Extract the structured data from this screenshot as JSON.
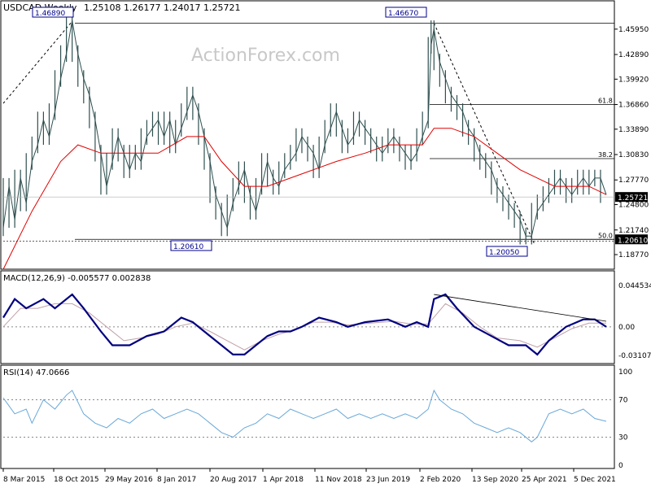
{
  "header": {
    "symbol": "USDCAD,Weekly",
    "ohlc": "1.25108 1.26177 1.24017 1.25721",
    "watermark": "ActionForex.com"
  },
  "colors": {
    "price": "#2f4f4f",
    "ma": "#e00000",
    "macd": "#000080",
    "signal": "#c0a0a8",
    "rsi": "#6aa8d8",
    "line": "#000000"
  },
  "chart_data": [
    {
      "type": "line",
      "title": "USDCAD,Weekly",
      "y_ticks": [
        "1.45950",
        "1.42890",
        "1.39920",
        "1.36860",
        "1.33890",
        "1.30830",
        "1.27770",
        "1.24800",
        "1.21740",
        "1.18770"
      ],
      "ylim": [
        1.175,
        1.475
      ],
      "x_ticks": [
        "8 Mar 2015",
        "18 Oct 2015",
        "29 May 2016",
        "8 Jan 2017",
        "20 Aug 2017",
        "1 Apr 2018",
        "11 Nov 2018",
        "23 Jun 2019",
        "2 Feb 2020",
        "13 Sep 2020",
        "25 Apr 2021",
        "5 Dec 2021"
      ],
      "current_price": "1.25721",
      "price_series": [
        [
          0,
          1.22
        ],
        [
          2,
          1.27
        ],
        [
          4,
          1.23
        ],
        [
          6,
          1.28
        ],
        [
          8,
          1.25
        ],
        [
          10,
          1.3
        ],
        [
          12,
          1.32
        ],
        [
          14,
          1.35
        ],
        [
          16,
          1.33
        ],
        [
          18,
          1.36
        ],
        [
          20,
          1.4
        ],
        [
          22,
          1.43
        ],
        [
          24,
          1.47
        ],
        [
          26,
          1.43
        ],
        [
          28,
          1.4
        ],
        [
          30,
          1.38
        ],
        [
          32,
          1.35
        ],
        [
          34,
          1.31
        ],
        [
          36,
          1.27
        ],
        [
          38,
          1.3
        ],
        [
          40,
          1.33
        ],
        [
          42,
          1.31
        ],
        [
          44,
          1.29
        ],
        [
          46,
          1.31
        ],
        [
          48,
          1.3
        ],
        [
          50,
          1.33
        ],
        [
          52,
          1.34
        ],
        [
          54,
          1.35
        ],
        [
          56,
          1.33
        ],
        [
          58,
          1.35
        ],
        [
          60,
          1.32
        ],
        [
          62,
          1.34
        ],
        [
          64,
          1.36
        ],
        [
          66,
          1.38
        ],
        [
          68,
          1.36
        ],
        [
          70,
          1.33
        ],
        [
          72,
          1.3
        ],
        [
          74,
          1.26
        ],
        [
          76,
          1.24
        ],
        [
          78,
          1.22
        ],
        [
          80,
          1.25
        ],
        [
          82,
          1.27
        ],
        [
          84,
          1.29
        ],
        [
          86,
          1.26
        ],
        [
          88,
          1.24
        ],
        [
          90,
          1.27
        ],
        [
          92,
          1.3
        ],
        [
          94,
          1.28
        ],
        [
          96,
          1.27
        ],
        [
          98,
          1.29
        ],
        [
          100,
          1.3
        ],
        [
          102,
          1.31
        ],
        [
          104,
          1.33
        ],
        [
          106,
          1.32
        ],
        [
          108,
          1.31
        ],
        [
          110,
          1.29
        ],
        [
          112,
          1.32
        ],
        [
          114,
          1.34
        ],
        [
          116,
          1.36
        ],
        [
          118,
          1.34
        ],
        [
          120,
          1.32
        ],
        [
          122,
          1.33
        ],
        [
          124,
          1.35
        ],
        [
          126,
          1.34
        ],
        [
          128,
          1.33
        ],
        [
          130,
          1.32
        ],
        [
          132,
          1.31
        ],
        [
          134,
          1.32
        ],
        [
          136,
          1.33
        ],
        [
          138,
          1.32
        ],
        [
          140,
          1.31
        ],
        [
          142,
          1.3
        ],
        [
          144,
          1.31
        ],
        [
          146,
          1.33
        ],
        [
          148,
          1.35
        ],
        [
          149,
          1.44
        ],
        [
          150,
          1.46
        ],
        [
          152,
          1.42
        ],
        [
          154,
          1.4
        ],
        [
          156,
          1.38
        ],
        [
          158,
          1.37
        ],
        [
          160,
          1.36
        ],
        [
          162,
          1.34
        ],
        [
          164,
          1.33
        ],
        [
          166,
          1.31
        ],
        [
          168,
          1.3
        ],
        [
          170,
          1.29
        ],
        [
          172,
          1.27
        ],
        [
          174,
          1.26
        ],
        [
          176,
          1.25
        ],
        [
          178,
          1.24
        ],
        [
          180,
          1.23
        ],
        [
          182,
          1.21
        ],
        [
          184,
          1.21
        ],
        [
          186,
          1.24
        ],
        [
          188,
          1.25
        ],
        [
          190,
          1.26
        ],
        [
          192,
          1.27
        ],
        [
          194,
          1.28
        ],
        [
          196,
          1.27
        ],
        [
          198,
          1.26
        ],
        [
          200,
          1.27
        ],
        [
          202,
          1.28
        ],
        [
          204,
          1.27
        ],
        [
          206,
          1.28
        ],
        [
          208,
          1.28
        ],
        [
          210,
          1.26
        ]
      ],
      "ma_series": [
        [
          0,
          1.17
        ],
        [
          10,
          1.24
        ],
        [
          20,
          1.3
        ],
        [
          26,
          1.32
        ],
        [
          34,
          1.31
        ],
        [
          44,
          1.31
        ],
        [
          54,
          1.31
        ],
        [
          64,
          1.33
        ],
        [
          70,
          1.33
        ],
        [
          76,
          1.3
        ],
        [
          84,
          1.27
        ],
        [
          92,
          1.27
        ],
        [
          100,
          1.28
        ],
        [
          108,
          1.29
        ],
        [
          116,
          1.3
        ],
        [
          126,
          1.31
        ],
        [
          134,
          1.32
        ],
        [
          140,
          1.32
        ],
        [
          146,
          1.32
        ],
        [
          150,
          1.34
        ],
        [
          156,
          1.34
        ],
        [
          164,
          1.33
        ],
        [
          172,
          1.31
        ],
        [
          180,
          1.29
        ],
        [
          186,
          1.28
        ],
        [
          192,
          1.27
        ],
        [
          198,
          1.27
        ],
        [
          204,
          1.27
        ],
        [
          210,
          1.26
        ]
      ],
      "levels": [
        {
          "label": "61.8",
          "value": 1.3686
        },
        {
          "label": "38.2",
          "value": 1.3034
        },
        {
          "label": "50.0",
          "value": 1.2061
        }
      ],
      "boxes": [
        {
          "label": "1.46890",
          "value": 1.4689
        },
        {
          "label": "1.46670",
          "value": 1.4667
        },
        {
          "label": "1.20610",
          "value": 1.2061
        },
        {
          "label": "1.20050",
          "value": 1.2005
        }
      ]
    },
    {
      "type": "line",
      "title": "MACD(12,26,9) -0.005577 0.002838",
      "y_ticks": [
        "0.044534",
        "0.00",
        "-0.031072"
      ],
      "ylim": [
        -0.038,
        0.05
      ],
      "macd_series": [
        [
          0,
          0.01
        ],
        [
          4,
          0.03
        ],
        [
          8,
          0.02
        ],
        [
          14,
          0.03
        ],
        [
          18,
          0.02
        ],
        [
          24,
          0.035
        ],
        [
          28,
          0.02
        ],
        [
          34,
          -0.005
        ],
        [
          38,
          -0.02
        ],
        [
          44,
          -0.02
        ],
        [
          50,
          -0.01
        ],
        [
          56,
          -0.005
        ],
        [
          62,
          0.01
        ],
        [
          66,
          0.005
        ],
        [
          70,
          -0.005
        ],
        [
          76,
          -0.02
        ],
        [
          80,
          -0.03
        ],
        [
          84,
          -0.03
        ],
        [
          88,
          -0.02
        ],
        [
          92,
          -0.01
        ],
        [
          96,
          -0.005
        ],
        [
          100,
          -0.005
        ],
        [
          104,
          0.0
        ],
        [
          110,
          0.01
        ],
        [
          116,
          0.005
        ],
        [
          120,
          0.0
        ],
        [
          126,
          0.005
        ],
        [
          134,
          0.008
        ],
        [
          140,
          0.0
        ],
        [
          144,
          0.005
        ],
        [
          148,
          0.0
        ],
        [
          150,
          0.03
        ],
        [
          154,
          0.035
        ],
        [
          158,
          0.02
        ],
        [
          164,
          0.0
        ],
        [
          170,
          -0.01
        ],
        [
          176,
          -0.02
        ],
        [
          182,
          -0.02
        ],
        [
          186,
          -0.03
        ],
        [
          190,
          -0.015
        ],
        [
          196,
          0.0
        ],
        [
          202,
          0.008
        ],
        [
          206,
          0.008
        ],
        [
          210,
          0.0
        ]
      ],
      "signal_series": [
        [
          0,
          0.0
        ],
        [
          6,
          0.02
        ],
        [
          12,
          0.02
        ],
        [
          18,
          0.025
        ],
        [
          24,
          0.025
        ],
        [
          30,
          0.015
        ],
        [
          36,
          0.0
        ],
        [
          42,
          -0.015
        ],
        [
          48,
          -0.012
        ],
        [
          54,
          -0.008
        ],
        [
          60,
          0.0
        ],
        [
          66,
          0.004
        ],
        [
          72,
          -0.005
        ],
        [
          78,
          -0.015
        ],
        [
          84,
          -0.025
        ],
        [
          90,
          -0.015
        ],
        [
          96,
          -0.008
        ],
        [
          102,
          -0.003
        ],
        [
          108,
          0.005
        ],
        [
          114,
          0.005
        ],
        [
          120,
          0.002
        ],
        [
          128,
          0.004
        ],
        [
          136,
          0.006
        ],
        [
          142,
          0.003
        ],
        [
          148,
          0.003
        ],
        [
          154,
          0.025
        ],
        [
          160,
          0.015
        ],
        [
          166,
          0.0
        ],
        [
          172,
          -0.012
        ],
        [
          180,
          -0.015
        ],
        [
          186,
          -0.022
        ],
        [
          192,
          -0.012
        ],
        [
          198,
          -0.002
        ],
        [
          204,
          0.004
        ],
        [
          210,
          0.004
        ]
      ]
    },
    {
      "type": "line",
      "title": "RSI(14) 47.0666",
      "y_ticks": [
        "100",
        "70",
        "30",
        "0"
      ],
      "ylim": [
        0,
        100
      ],
      "rsi_series": [
        [
          0,
          72
        ],
        [
          4,
          55
        ],
        [
          8,
          60
        ],
        [
          10,
          45
        ],
        [
          14,
          70
        ],
        [
          18,
          60
        ],
        [
          22,
          75
        ],
        [
          24,
          80
        ],
        [
          28,
          55
        ],
        [
          32,
          45
        ],
        [
          36,
          40
        ],
        [
          40,
          50
        ],
        [
          44,
          45
        ],
        [
          48,
          55
        ],
        [
          52,
          60
        ],
        [
          56,
          50
        ],
        [
          60,
          55
        ],
        [
          64,
          60
        ],
        [
          68,
          55
        ],
        [
          72,
          45
        ],
        [
          76,
          35
        ],
        [
          80,
          30
        ],
        [
          84,
          40
        ],
        [
          88,
          45
        ],
        [
          92,
          55
        ],
        [
          96,
          50
        ],
        [
          100,
          60
        ],
        [
          104,
          55
        ],
        [
          108,
          50
        ],
        [
          112,
          55
        ],
        [
          116,
          60
        ],
        [
          120,
          50
        ],
        [
          124,
          55
        ],
        [
          128,
          50
        ],
        [
          132,
          55
        ],
        [
          136,
          50
        ],
        [
          140,
          55
        ],
        [
          144,
          50
        ],
        [
          148,
          60
        ],
        [
          150,
          80
        ],
        [
          152,
          70
        ],
        [
          156,
          60
        ],
        [
          160,
          55
        ],
        [
          164,
          45
        ],
        [
          168,
          40
        ],
        [
          172,
          35
        ],
        [
          176,
          40
        ],
        [
          180,
          35
        ],
        [
          184,
          25
        ],
        [
          186,
          30
        ],
        [
          190,
          55
        ],
        [
          194,
          60
        ],
        [
          198,
          55
        ],
        [
          202,
          60
        ],
        [
          206,
          50
        ],
        [
          210,
          47
        ]
      ]
    }
  ]
}
